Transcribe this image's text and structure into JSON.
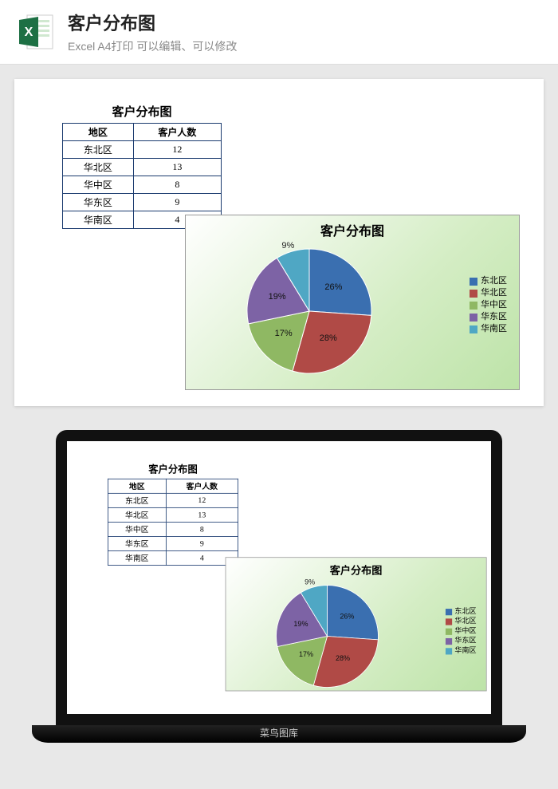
{
  "header": {
    "title": "客户分布图",
    "subtitle": "Excel A4打印 可以编辑、可以修改"
  },
  "table": {
    "title": "客户分布图",
    "columns": [
      "地区",
      "客户人数"
    ],
    "rows": [
      [
        "东北区",
        "12"
      ],
      [
        "华北区",
        "13"
      ],
      [
        "华中区",
        "8"
      ],
      [
        "华东区",
        "9"
      ],
      [
        "华南区",
        "4"
      ]
    ],
    "border_color": "#1a3a6e"
  },
  "chart": {
    "type": "pie",
    "title": "客户分布图",
    "background_gradient": [
      "#ffffff",
      "#bde3a8"
    ],
    "title_fontsize": 16,
    "label_fontsize": 11,
    "slices": [
      {
        "name": "东北区",
        "value": 12,
        "percent": "26%",
        "color": "#3a6fb0"
      },
      {
        "name": "华北区",
        "value": 13,
        "percent": "28%",
        "color": "#b04a46"
      },
      {
        "name": "华中区",
        "value": 8,
        "percent": "17%",
        "color": "#8fb863"
      },
      {
        "name": "华东区",
        "value": 9,
        "percent": "19%",
        "color": "#7d63a5"
      },
      {
        "name": "华南区",
        "value": 4,
        "percent": "9%",
        "color": "#4fa7c4"
      }
    ],
    "legend_position": "right"
  },
  "laptop": {
    "footer_text": "菜鸟图库"
  }
}
